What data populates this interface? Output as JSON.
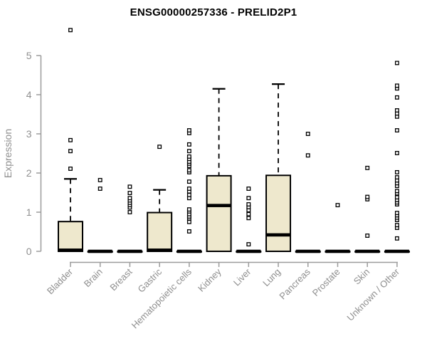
{
  "header": {
    "title": "ENSG00000257336 - PRELID2P1"
  },
  "chart_data": {
    "type": "boxplot",
    "title": "ENSG00000257336 - PRELID2P1",
    "xlabel": "",
    "ylabel": "Expression",
    "ylim": [
      0,
      5.8
    ],
    "yticks": [
      0,
      1,
      2,
      3,
      4,
      5
    ],
    "grid": false,
    "legend": false,
    "categories": [
      "Bladder",
      "Brain",
      "Breast",
      "Gastric",
      "Hematopoietic cells",
      "Kidney",
      "Liver",
      "Lung",
      "Pancreas",
      "Prostate",
      "Skin",
      "Unknown / Other"
    ],
    "series": [
      {
        "name": "Bladder",
        "q1": 0,
        "median": 0.03,
        "q3": 0.76,
        "whisker_low": 0,
        "whisker_high": 1.85,
        "outliers": [
          2.11,
          2.56,
          2.84,
          5.65
        ]
      },
      {
        "name": "Brain",
        "q1": 0,
        "median": 0,
        "q3": 0,
        "whisker_low": 0,
        "whisker_high": 0,
        "outliers": [
          1.6,
          1.82
        ]
      },
      {
        "name": "Breast",
        "q1": 0,
        "median": 0,
        "q3": 0,
        "whisker_low": 0,
        "whisker_high": 0,
        "outliers": [
          1.0,
          1.12,
          1.18,
          1.24,
          1.3,
          1.36,
          1.49,
          1.65
        ]
      },
      {
        "name": "Gastric",
        "q1": 0,
        "median": 0.03,
        "q3": 0.99,
        "whisker_low": 0,
        "whisker_high": 1.57,
        "outliers": [
          2.67
        ]
      },
      {
        "name": "Hematopoietic cells",
        "q1": 0,
        "median": 0,
        "q3": 0,
        "whisker_low": 0,
        "whisker_high": 0,
        "outliers": [
          0.51,
          0.75,
          0.84,
          0.89,
          0.95,
          1.02,
          1.07,
          1.36,
          1.44,
          1.53,
          1.6,
          1.78,
          2.02,
          2.07,
          2.18,
          2.24,
          2.29,
          2.36,
          2.42,
          2.56,
          2.73,
          3.02,
          3.09
        ]
      },
      {
        "name": "Kidney",
        "q1": 0,
        "median": 1.17,
        "q3": 1.93,
        "whisker_low": 0,
        "whisker_high": 4.15,
        "outliers": []
      },
      {
        "name": "Liver",
        "q1": 0,
        "median": 0,
        "q3": 0,
        "whisker_low": 0,
        "whisker_high": 0,
        "outliers": [
          0.18,
          0.85,
          0.95,
          1.05,
          1.13,
          1.2,
          1.36,
          1.6
        ]
      },
      {
        "name": "Lung",
        "q1": 0,
        "median": 0.42,
        "q3": 1.94,
        "whisker_low": 0,
        "whisker_high": 4.27,
        "outliers": []
      },
      {
        "name": "Pancreas",
        "q1": 0,
        "median": 0,
        "q3": 0,
        "whisker_low": 0,
        "whisker_high": 0,
        "outliers": [
          2.45,
          3.0
        ]
      },
      {
        "name": "Prostate",
        "q1": 0,
        "median": 0,
        "q3": 0,
        "whisker_low": 0,
        "whisker_high": 0,
        "outliers": [
          1.18
        ]
      },
      {
        "name": "Skin",
        "q1": 0,
        "median": 0,
        "q3": 0,
        "whisker_low": 0,
        "whisker_high": 0,
        "outliers": [
          0.4,
          1.33,
          1.39,
          2.13
        ]
      },
      {
        "name": "Unknown / Other",
        "q1": 0,
        "median": 0,
        "q3": 0,
        "whisker_low": 0,
        "whisker_high": 0,
        "outliers": [
          0.33,
          0.6,
          0.67,
          0.8,
          0.86,
          0.92,
          0.98,
          1.2,
          1.25,
          1.31,
          1.38,
          1.48,
          1.54,
          1.67,
          1.74,
          1.81,
          1.89,
          2.02,
          2.51,
          3.09,
          3.44,
          3.52,
          3.6,
          3.93,
          4.16,
          4.23,
          4.81
        ]
      }
    ],
    "colors": {
      "box_fill": "#EEE8CD",
      "box_border": "#000000",
      "median": "#000000",
      "whisker": "#000000",
      "outlier_border": "#000000",
      "outlier_fill": "#ffffff",
      "axis_line": "#9c9c9c",
      "axis_text": "#8f8f8f",
      "title": "#000000",
      "background": "#ffffff"
    }
  }
}
